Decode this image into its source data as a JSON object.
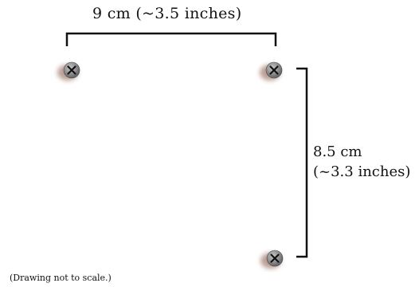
{
  "diagram": {
    "horizontal_measure": {
      "label": "9 cm (~3.5 inches)"
    },
    "vertical_measure": {
      "label_line1": "8.5 cm",
      "label_line2": "(~3.3 inches)"
    },
    "screws": [
      {
        "name": "screw-top-left-icon"
      },
      {
        "name": "screw-top-right-icon"
      },
      {
        "name": "screw-bottom-right-icon"
      }
    ],
    "footnote": "(Drawing not to scale.)"
  }
}
